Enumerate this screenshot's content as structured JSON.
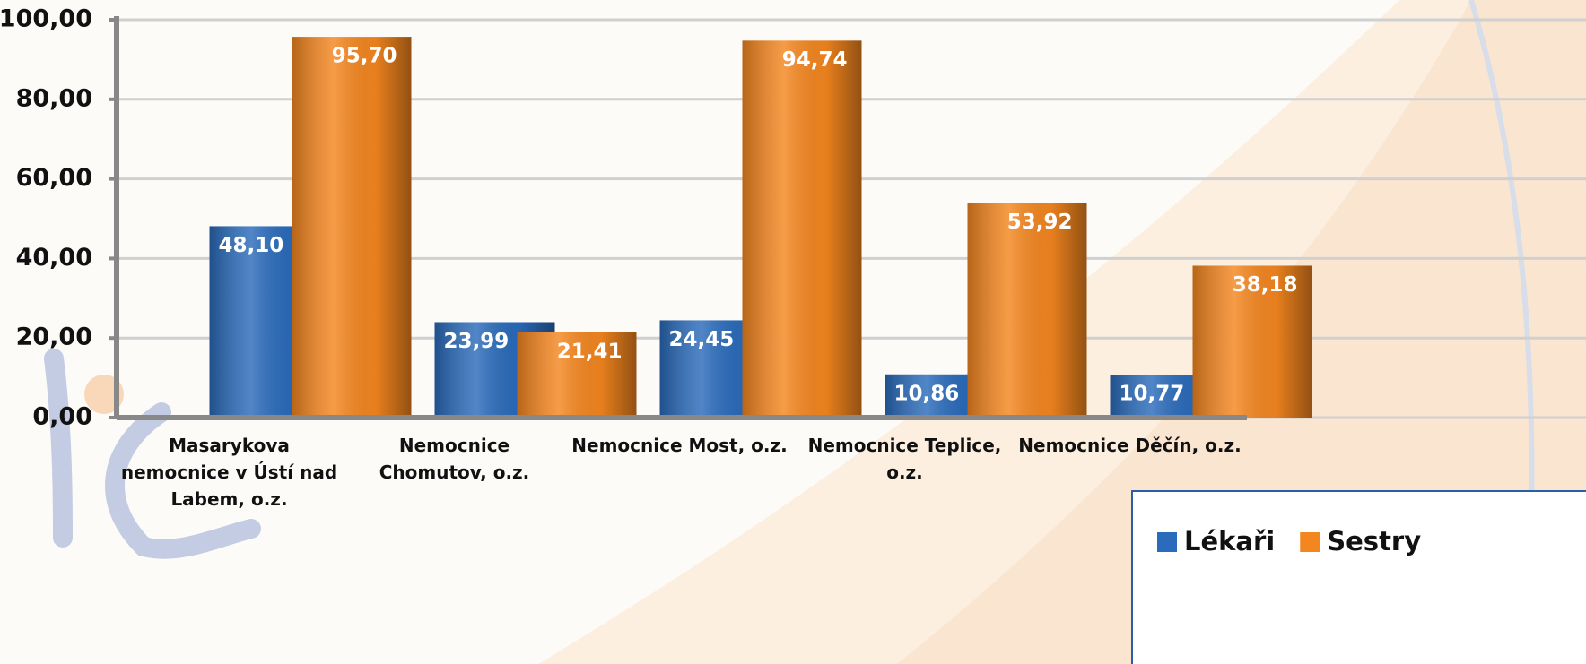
{
  "chart_data": {
    "type": "bar",
    "categories": [
      "Masarykova nemocnice v Ústí nad Labem, o.z.",
      "Nemocnice Chomutov, o.z.",
      "Nemocnice Most, o.z.",
      "Nemocnice Teplice, o.z.",
      "Nemocnice Děčín, o.z."
    ],
    "series": [
      {
        "name": "Lékaři",
        "color": "#2a6bbb",
        "values": [
          48.1,
          23.99,
          24.45,
          10.86,
          10.77
        ],
        "value_labels": [
          "48,10",
          "23,99",
          "24,45",
          "10,86",
          "10,77"
        ]
      },
      {
        "name": "Sestry",
        "color": "#f4861f",
        "values": [
          95.7,
          21.41,
          94.74,
          53.92,
          38.18
        ],
        "value_labels": [
          "95,70",
          "21,41",
          "94,74",
          "53,92",
          "38,18"
        ]
      }
    ],
    "ylim": [
      0,
      100
    ],
    "yticks": [
      {
        "value": 0,
        "label": "0,00"
      },
      {
        "value": 20,
        "label": "20,00"
      },
      {
        "value": 40,
        "label": "40,00"
      },
      {
        "value": 60,
        "label": "60,00"
      },
      {
        "value": 80,
        "label": "80,00"
      },
      {
        "value": 100,
        "label": "100,00"
      }
    ],
    "grid": true
  }
}
